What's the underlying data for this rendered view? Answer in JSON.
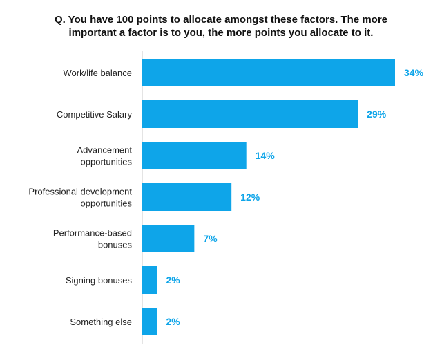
{
  "chart_data": {
    "type": "bar",
    "orientation": "horizontal",
    "title": "Q. You have 100 points to allocate amongst these factors. The more important a factor is to you, the more points you allocate to it.",
    "title_lines": [
      "Q. You have 100 points to allocate amongst these factors. The more",
      "important a factor is to you, the more points you allocate to it."
    ],
    "categories": [
      "Work/life balance",
      "Competitive Salary",
      "Advancement opportunities",
      "Professional development opportunities",
      "Performance-based bonuses",
      "Signing bonuses",
      "Something else"
    ],
    "category_lines": [
      [
        "Work/life balance"
      ],
      [
        "Competitive Salary"
      ],
      [
        "Advancement",
        "opportunities"
      ],
      [
        "Professional development",
        "opportunities"
      ],
      [
        "Performance-based",
        "bonuses"
      ],
      [
        "Signing bonuses"
      ],
      [
        "Something else"
      ]
    ],
    "values": [
      34,
      29,
      14,
      12,
      7,
      2,
      2
    ],
    "value_labels": [
      "34%",
      "29%",
      "14%",
      "12%",
      "7%",
      "2%",
      "2%"
    ],
    "unit": "%",
    "xlim": [
      0,
      34
    ],
    "xlabel": "",
    "ylabel": "",
    "grid": false,
    "legend": "none",
    "bar_color": "#0ea5e9",
    "label_color": "#0ea5e9",
    "axis_color": "#c8c8c8"
  }
}
